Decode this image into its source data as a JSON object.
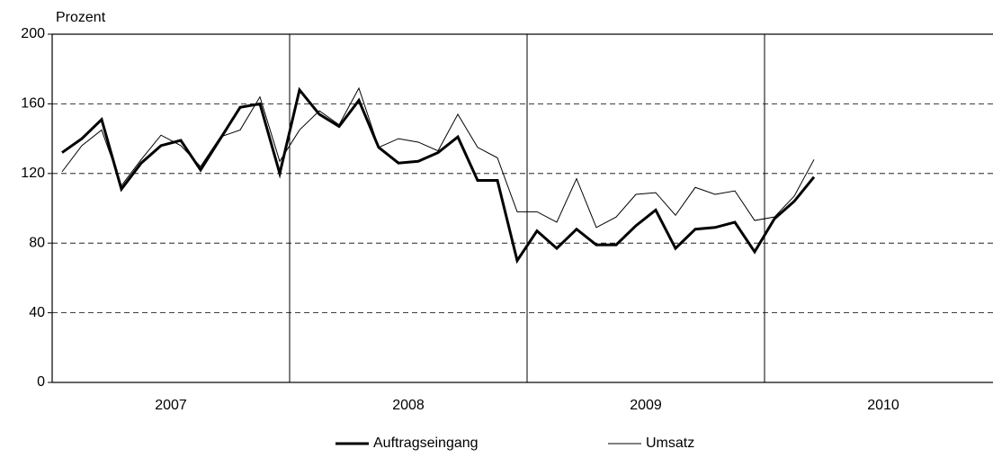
{
  "chart_data": {
    "type": "line",
    "ylabel": "Prozent",
    "groups": [
      "2007",
      "2008",
      "2009",
      "2010"
    ],
    "categories": [
      null,
      null,
      null,
      null,
      null,
      null,
      null,
      null,
      null,
      null,
      null,
      null,
      null,
      null,
      null,
      null,
      null,
      null,
      null,
      null,
      null,
      null,
      null,
      null,
      null,
      null,
      null,
      null,
      null,
      null,
      null,
      null,
      null,
      null,
      null,
      null,
      null,
      null,
      null,
      null,
      null,
      null,
      null,
      null,
      null,
      null,
      null,
      null
    ],
    "series": [
      {
        "name": "Auftragseingang",
        "color": "#000000",
        "width": 3,
        "values": [
          132,
          140,
          151,
          111,
          126,
          136,
          139,
          122,
          140,
          158,
          160,
          120,
          168,
          154,
          147,
          162,
          135,
          126,
          127,
          132,
          141,
          116,
          116,
          70,
          87,
          77,
          88,
          79,
          79,
          90,
          99,
          77,
          88,
          89,
          92,
          75,
          94,
          104,
          118,
          null,
          null,
          null,
          null,
          null,
          null,
          null,
          null,
          null
        ]
      },
      {
        "name": "Umsatz",
        "color": "#000000",
        "width": 1,
        "values": [
          121,
          136,
          145,
          113,
          128,
          142,
          136,
          124,
          141,
          145,
          164,
          127,
          145,
          156,
          148,
          169,
          135,
          140,
          138,
          133,
          154,
          135,
          129,
          98,
          98,
          92,
          117,
          89,
          95,
          108,
          109,
          96,
          112,
          108,
          110,
          93,
          95,
          107,
          128,
          null,
          null,
          null,
          null,
          null,
          null,
          null,
          null,
          null
        ]
      }
    ],
    "ylim": [
      0,
      200
    ],
    "yticks": [
      0,
      40,
      80,
      120,
      160,
      200
    ],
    "grid": true,
    "legend": "bottom"
  }
}
